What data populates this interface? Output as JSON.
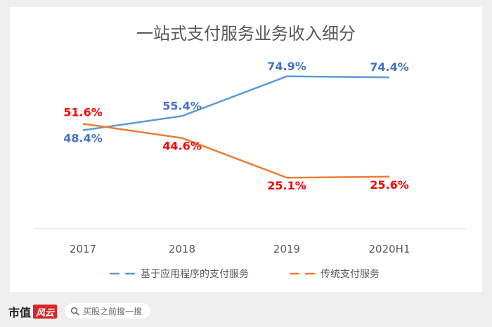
{
  "chart_data": {
    "type": "line",
    "title": "一站式支付服务业务收入细分",
    "categories": [
      "2017",
      "2018",
      "2019",
      "2020H1"
    ],
    "ylim": [
      0,
      100
    ],
    "grid": false,
    "legend": "bottom",
    "series": [
      {
        "name": "基于应用程序的支付服务",
        "values": [
          48.4,
          55.4,
          74.9,
          74.4
        ],
        "labels": [
          "48.4%",
          "55.4%",
          "74.9%",
          "74.4%"
        ],
        "color": "#5b9bd5",
        "label_color": "#4472c4"
      },
      {
        "name": "传统支付服务",
        "values": [
          51.6,
          44.6,
          25.1,
          25.6
        ],
        "labels": [
          "51.6%",
          "44.6%",
          "25.1%",
          "25.6%"
        ],
        "color": "#ed7d31",
        "label_color": "#ff0000"
      }
    ]
  },
  "footer": {
    "brand": "市值",
    "brand_logo": "风云",
    "search_placeholder": "买股之前搜一搜"
  }
}
